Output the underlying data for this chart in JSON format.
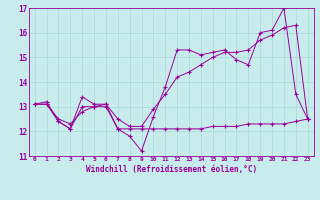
{
  "title": "",
  "xlabel": "Windchill (Refroidissement éolien,°C)",
  "ylabel": "",
  "bg_color": "#c8ecec",
  "grid_color": "#a8d8d8",
  "line_color": "#990099",
  "xlim": [
    -0.5,
    23.5
  ],
  "ylim": [
    11,
    17
  ],
  "xticks": [
    0,
    1,
    2,
    3,
    4,
    5,
    6,
    7,
    8,
    9,
    10,
    11,
    12,
    13,
    14,
    15,
    16,
    17,
    18,
    19,
    20,
    21,
    22,
    23
  ],
  "yticks": [
    11,
    12,
    13,
    14,
    15,
    16,
    17
  ],
  "line1": [
    13.1,
    13.2,
    12.4,
    12.1,
    13.4,
    13.1,
    13.1,
    12.1,
    11.8,
    11.2,
    12.6,
    13.8,
    15.3,
    15.3,
    15.1,
    15.2,
    15.3,
    14.9,
    14.7,
    16.0,
    16.1,
    17.0,
    13.5,
    12.5
  ],
  "line2": [
    13.1,
    13.1,
    12.4,
    12.1,
    13.0,
    13.0,
    13.0,
    12.1,
    12.1,
    12.1,
    12.1,
    12.1,
    12.1,
    12.1,
    12.1,
    12.2,
    12.2,
    12.2,
    12.3,
    12.3,
    12.3,
    12.3,
    12.4,
    12.5
  ],
  "line3": [
    13.1,
    13.1,
    12.5,
    12.3,
    12.8,
    13.0,
    13.1,
    12.5,
    12.2,
    12.2,
    12.9,
    13.5,
    14.2,
    14.4,
    14.7,
    15.0,
    15.2,
    15.2,
    15.3,
    15.7,
    15.9,
    16.2,
    16.3,
    12.5
  ]
}
